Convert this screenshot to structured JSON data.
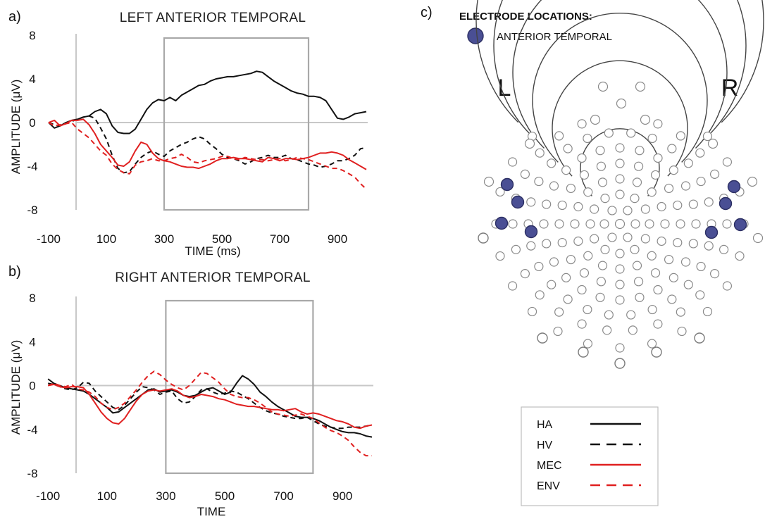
{
  "panel_a": {
    "letter": "a)",
    "title": "LEFT ANTERIOR TEMPORAL",
    "ylabel": "AMPLITUDE (μV)",
    "xlabel": "TIME (ms)"
  },
  "panel_b": {
    "letter": "b)",
    "title": "RIGHT ANTERIOR TEMPORAL",
    "ylabel": "AMPLITUDE (μV)",
    "xlabel": "TIME"
  },
  "panel_c": {
    "letter": "c)",
    "header": "ELECTRODE LOCATIONS:",
    "highlight_label": "ANTERIOR TEMPORAL",
    "left_label": "L",
    "right_label": "R"
  },
  "legend": {
    "items": [
      {
        "label": "HA",
        "color": "#111111",
        "dash": "solid"
      },
      {
        "label": "HV",
        "color": "#111111",
        "dash": "dashed"
      },
      {
        "label": "MEC",
        "color": "#e02020",
        "dash": "solid"
      },
      {
        "label": "ENV",
        "color": "#e02020",
        "dash": "dashed"
      }
    ]
  },
  "chart_data": [
    {
      "type": "line",
      "title": "LEFT ANTERIOR TEMPORAL",
      "xlabel": "TIME (ms)",
      "ylabel": "AMPLITUDE (μV)",
      "xlim": [
        -100,
        1000
      ],
      "ylim": [
        -8,
        8
      ],
      "xticks": [
        -100,
        100,
        300,
        500,
        700,
        900
      ],
      "yticks": [
        8,
        4,
        0,
        -4,
        -8
      ],
      "window": [
        300,
        800
      ],
      "series": [
        {
          "name": "HA",
          "color": "#111111",
          "dash": "solid",
          "x": [
            -100,
            -80,
            -60,
            -40,
            -20,
            0,
            20,
            40,
            60,
            80,
            100,
            120,
            140,
            160,
            180,
            200,
            220,
            240,
            260,
            280,
            300,
            320,
            340,
            360,
            380,
            400,
            420,
            440,
            460,
            480,
            500,
            520,
            540,
            560,
            580,
            600,
            620,
            640,
            660,
            680,
            700,
            720,
            740,
            760,
            780,
            800,
            820,
            840,
            860,
            880,
            900,
            920,
            940,
            960,
            980,
            1000
          ],
          "y": [
            0,
            -0.5,
            -0.3,
            0,
            0.2,
            0.3,
            0.5,
            0.6,
            1.0,
            1.2,
            0.8,
            -0.3,
            -0.9,
            -1.0,
            -1.0,
            -0.6,
            0.3,
            1.2,
            1.8,
            2.1,
            2.0,
            2.3,
            2.0,
            2.5,
            2.8,
            3.1,
            3.4,
            3.5,
            3.8,
            4.0,
            4.1,
            4.2,
            4.2,
            4.3,
            4.4,
            4.5,
            4.7,
            4.6,
            4.2,
            3.8,
            3.5,
            3.2,
            2.9,
            2.7,
            2.6,
            2.4,
            2.4,
            2.3,
            2.0,
            1.2,
            0.4,
            0.3,
            0.5,
            0.8,
            0.9,
            1.0
          ]
        },
        {
          "name": "HV",
          "color": "#111111",
          "dash": "dashed",
          "x": [
            -100,
            -80,
            -60,
            -40,
            -20,
            0,
            20,
            40,
            60,
            80,
            100,
            120,
            140,
            160,
            180,
            200,
            220,
            240,
            260,
            280,
            300,
            320,
            340,
            360,
            380,
            400,
            420,
            440,
            460,
            480,
            500,
            520,
            540,
            560,
            580,
            600,
            620,
            640,
            660,
            680,
            700,
            720,
            740,
            760,
            780,
            800,
            820,
            840,
            860,
            880,
            900,
            920,
            940,
            960,
            980,
            1000
          ],
          "y": [
            0,
            -0.2,
            -0.3,
            -0.1,
            0.1,
            0.3,
            0.5,
            0.6,
            0.4,
            -0.5,
            -1.5,
            -3.0,
            -4.2,
            -4.6,
            -4.5,
            -3.8,
            -3.2,
            -2.8,
            -2.6,
            -2.9,
            -3.1,
            -2.6,
            -2.3,
            -2.0,
            -1.8,
            -1.5,
            -1.3,
            -1.5,
            -2.0,
            -2.4,
            -2.9,
            -3.2,
            -3.3,
            -3.5,
            -3.8,
            -3.6,
            -3.3,
            -3.2,
            -3.0,
            -3.2,
            -3.2,
            -3.0,
            -3.3,
            -3.4,
            -3.6,
            -3.8,
            -3.9,
            -4.1,
            -4.0,
            -3.8,
            -3.5,
            -3.5,
            -3.3,
            -3.0,
            -2.4,
            -2.3
          ]
        },
        {
          "name": "MEC",
          "color": "#e02020",
          "dash": "solid",
          "x": [
            -100,
            -80,
            -60,
            -40,
            -20,
            0,
            20,
            40,
            60,
            80,
            100,
            120,
            140,
            160,
            180,
            200,
            220,
            240,
            260,
            280,
            300,
            320,
            340,
            360,
            380,
            400,
            420,
            440,
            460,
            480,
            500,
            520,
            540,
            560,
            580,
            600,
            620,
            640,
            660,
            680,
            700,
            720,
            740,
            760,
            780,
            800,
            820,
            840,
            860,
            880,
            900,
            920,
            940,
            960,
            980,
            1000
          ],
          "y": [
            0,
            0.2,
            -0.3,
            -0.1,
            0.2,
            0.2,
            0.3,
            -0.2,
            -1.0,
            -2.0,
            -2.6,
            -3.2,
            -3.9,
            -4.0,
            -3.6,
            -2.6,
            -1.8,
            -2.0,
            -2.8,
            -3.3,
            -3.5,
            -3.6,
            -3.8,
            -4.0,
            -4.1,
            -4.1,
            -4.2,
            -4.0,
            -3.8,
            -3.5,
            -3.3,
            -3.3,
            -3.2,
            -3.3,
            -3.3,
            -3.4,
            -3.5,
            -3.6,
            -3.2,
            -3.3,
            -3.5,
            -3.3,
            -3.3,
            -3.4,
            -3.3,
            -3.2,
            -3.0,
            -2.8,
            -2.8,
            -2.7,
            -2.8,
            -3.0,
            -3.4,
            -3.7,
            -4.0,
            -4.3
          ]
        },
        {
          "name": "ENV",
          "color": "#e02020",
          "dash": "dashed",
          "x": [
            -100,
            -80,
            -60,
            -40,
            -20,
            0,
            20,
            40,
            60,
            80,
            100,
            120,
            140,
            160,
            180,
            200,
            220,
            240,
            260,
            280,
            300,
            320,
            340,
            360,
            380,
            400,
            420,
            440,
            460,
            480,
            500,
            520,
            540,
            560,
            580,
            600,
            620,
            640,
            660,
            680,
            700,
            720,
            740,
            760,
            780,
            800,
            820,
            840,
            860,
            880,
            900,
            920,
            940,
            960,
            980,
            1000
          ],
          "y": [
            0,
            -0.3,
            -0.2,
            -0.1,
            0.0,
            -0.6,
            -1.0,
            -1.4,
            -2.0,
            -2.6,
            -3.0,
            -3.8,
            -4.3,
            -4.6,
            -4.7,
            -3.9,
            -3.6,
            -3.5,
            -3.3,
            -3.5,
            -3.5,
            -3.3,
            -3.2,
            -2.9,
            -3.2,
            -3.6,
            -3.7,
            -3.5,
            -3.4,
            -3.3,
            -3.1,
            -3.1,
            -3.3,
            -3.4,
            -3.2,
            -3.3,
            -3.4,
            -3.4,
            -3.5,
            -3.4,
            -3.3,
            -3.5,
            -3.4,
            -3.2,
            -3.3,
            -3.4,
            -3.6,
            -3.8,
            -4.0,
            -4.2,
            -4.2,
            -4.4,
            -4.7,
            -5.0,
            -5.6,
            -6.1
          ]
        }
      ]
    },
    {
      "type": "line",
      "title": "RIGHT ANTERIOR TEMPORAL",
      "xlabel": "TIME",
      "ylabel": "AMPLITUDE (μV)",
      "xlim": [
        -100,
        1000
      ],
      "ylim": [
        -8,
        8
      ],
      "xticks": [
        -100,
        100,
        300,
        500,
        700,
        900
      ],
      "yticks": [
        8,
        4,
        0,
        -4,
        -8
      ],
      "window": [
        300,
        800
      ],
      "series": [
        {
          "name": "HA",
          "color": "#111111",
          "dash": "solid",
          "x": [
            -100,
            -80,
            -60,
            -40,
            -20,
            0,
            20,
            40,
            60,
            80,
            100,
            120,
            140,
            160,
            180,
            200,
            220,
            240,
            260,
            280,
            300,
            320,
            340,
            360,
            380,
            400,
            420,
            440,
            460,
            480,
            500,
            520,
            540,
            560,
            580,
            600,
            620,
            640,
            660,
            680,
            700,
            720,
            740,
            760,
            780,
            800,
            820,
            840,
            860,
            880,
            900,
            920,
            940,
            960,
            980,
            1000
          ],
          "y": [
            0.6,
            0.2,
            0,
            -0.2,
            -0.3,
            -0.4,
            -0.5,
            -0.8,
            -1.2,
            -1.6,
            -2.0,
            -2.5,
            -2.4,
            -2.0,
            -1.6,
            -1.2,
            -0.8,
            -0.4,
            -0.3,
            -0.6,
            -0.5,
            -0.4,
            -0.6,
            -0.9,
            -1.0,
            -0.9,
            -0.6,
            -0.3,
            -0.2,
            -0.5,
            -0.8,
            -0.6,
            0.2,
            0.9,
            0.6,
            0.1,
            -0.6,
            -1.0,
            -1.5,
            -1.9,
            -2.2,
            -2.5,
            -2.8,
            -2.9,
            -2.9,
            -3.0,
            -3.2,
            -3.5,
            -3.8,
            -4.0,
            -4.2,
            -4.3,
            -4.3,
            -4.4,
            -4.6,
            -4.7
          ]
        },
        {
          "name": "HV",
          "color": "#111111",
          "dash": "dashed",
          "x": [
            -100,
            -80,
            -60,
            -40,
            -20,
            0,
            20,
            40,
            60,
            80,
            100,
            120,
            140,
            160,
            180,
            200,
            220,
            240,
            260,
            280,
            300,
            320,
            340,
            360,
            380,
            400,
            420,
            440,
            460,
            480,
            500,
            520,
            540,
            560,
            580,
            600,
            620,
            640,
            660,
            680,
            700,
            720,
            740,
            760,
            780,
            800,
            820,
            840,
            860,
            880,
            900,
            920,
            940,
            960,
            980,
            1000
          ],
          "y": [
            0.2,
            0.1,
            -0.1,
            -0.3,
            -0.4,
            -0.2,
            0.3,
            0.2,
            -0.5,
            -1.0,
            -1.5,
            -2.0,
            -2.2,
            -1.8,
            -1.2,
            -0.6,
            -0.1,
            -0.2,
            -0.4,
            -0.8,
            -0.6,
            -0.5,
            -1.2,
            -1.6,
            -1.5,
            -1.0,
            -0.4,
            -0.3,
            -0.6,
            -0.8,
            -0.7,
            -0.5,
            -0.6,
            -0.9,
            -1.2,
            -1.6,
            -2.0,
            -2.3,
            -2.5,
            -2.6,
            -2.8,
            -2.9,
            -3.0,
            -3.0,
            -2.9,
            -3.2,
            -3.5,
            -3.7,
            -3.8,
            -3.9,
            -3.9,
            -3.8,
            -3.8,
            -3.8,
            -3.7,
            -3.6
          ]
        },
        {
          "name": "MEC",
          "color": "#e02020",
          "dash": "solid",
          "x": [
            -100,
            -80,
            -60,
            -40,
            -20,
            0,
            20,
            40,
            60,
            80,
            100,
            120,
            140,
            160,
            180,
            200,
            220,
            240,
            260,
            280,
            300,
            320,
            340,
            360,
            380,
            400,
            420,
            440,
            460,
            480,
            500,
            520,
            540,
            560,
            580,
            600,
            620,
            640,
            660,
            680,
            700,
            720,
            740,
            760,
            780,
            800,
            820,
            840,
            860,
            880,
            900,
            920,
            940,
            960,
            980,
            1000
          ],
          "y": [
            0,
            0.1,
            -0.1,
            -0.2,
            -0.1,
            -0.1,
            -0.2,
            -0.8,
            -1.6,
            -2.4,
            -3.0,
            -3.4,
            -3.5,
            -3.0,
            -2.2,
            -1.4,
            -0.8,
            -0.5,
            -0.4,
            -0.5,
            -0.4,
            -0.3,
            -0.5,
            -0.9,
            -1.1,
            -1.0,
            -0.8,
            -0.9,
            -1.0,
            -1.2,
            -1.3,
            -1.5,
            -1.7,
            -1.8,
            -1.9,
            -1.9,
            -2.0,
            -2.1,
            -2.2,
            -2.2,
            -2.3,
            -2.2,
            -2.1,
            -2.4,
            -2.6,
            -2.5,
            -2.6,
            -2.8,
            -3.0,
            -3.2,
            -3.3,
            -3.5,
            -3.8,
            -3.9,
            -3.7,
            -3.6
          ]
        },
        {
          "name": "ENV",
          "color": "#e02020",
          "dash": "dashed",
          "x": [
            -100,
            -80,
            -60,
            -40,
            -20,
            0,
            20,
            40,
            60,
            80,
            100,
            120,
            140,
            160,
            180,
            200,
            220,
            240,
            260,
            280,
            300,
            320,
            340,
            360,
            380,
            400,
            420,
            440,
            460,
            480,
            500,
            520,
            540,
            560,
            580,
            600,
            620,
            640,
            660,
            680,
            700,
            720,
            740,
            760,
            780,
            800,
            820,
            840,
            860,
            880,
            900,
            920,
            940,
            960,
            980,
            1000
          ],
          "y": [
            0,
            0.2,
            0,
            -0.1,
            0.1,
            -0.3,
            -0.4,
            -0.6,
            -1.0,
            -1.6,
            -2.0,
            -2.2,
            -2.0,
            -1.6,
            -1.0,
            -0.4,
            0.3,
            0.9,
            1.3,
            1.0,
            0.5,
            0.1,
            -0.2,
            -0.4,
            0.0,
            0.6,
            1.2,
            1.1,
            0.7,
            0.3,
            -0.3,
            -0.8,
            -1.0,
            -1.1,
            -1.1,
            -1.3,
            -1.6,
            -2.0,
            -2.4,
            -2.6,
            -2.7,
            -2.8,
            -2.7,
            -2.6,
            -2.8,
            -3.0,
            -3.4,
            -3.8,
            -4.1,
            -4.3,
            -4.6,
            -5.0,
            -5.6,
            -6.1,
            -6.4,
            -6.4
          ]
        }
      ]
    }
  ]
}
